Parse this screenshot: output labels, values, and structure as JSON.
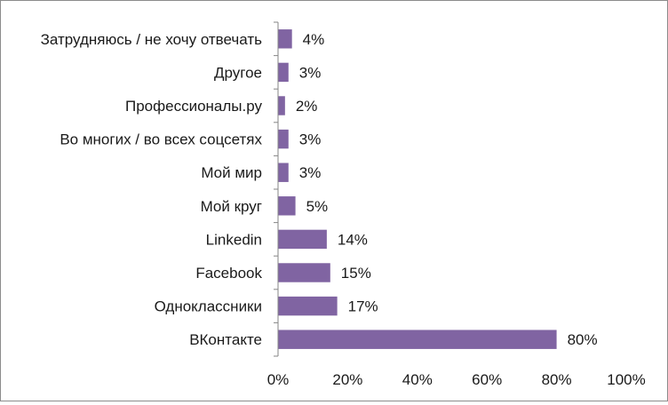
{
  "chart_data": {
    "type": "bar",
    "orientation": "horizontal",
    "categories": [
      "Затрудняюсь / не хочу отвечать",
      "Другое",
      "Профессионалы.ру",
      "Во многих / во всех соцсетях",
      "Мой мир",
      "Мой круг",
      "Linkedin",
      "Facebook",
      "Одноклассники",
      "ВКонтакте"
    ],
    "values": [
      4,
      3,
      2,
      3,
      3,
      5,
      14,
      15,
      17,
      80
    ],
    "value_labels": [
      "4%",
      "3%",
      "2%",
      "3%",
      "3%",
      "5%",
      "14%",
      "15%",
      "17%",
      "80%"
    ],
    "x_ticks": [
      "0%",
      "20%",
      "40%",
      "60%",
      "80%",
      "100%"
    ],
    "xlim": [
      0,
      100
    ],
    "unit": "%",
    "grid": false,
    "legend": "none",
    "bar_color": "#8064a2",
    "axis_color": "#868686",
    "text_color": "#1a1a1a"
  }
}
